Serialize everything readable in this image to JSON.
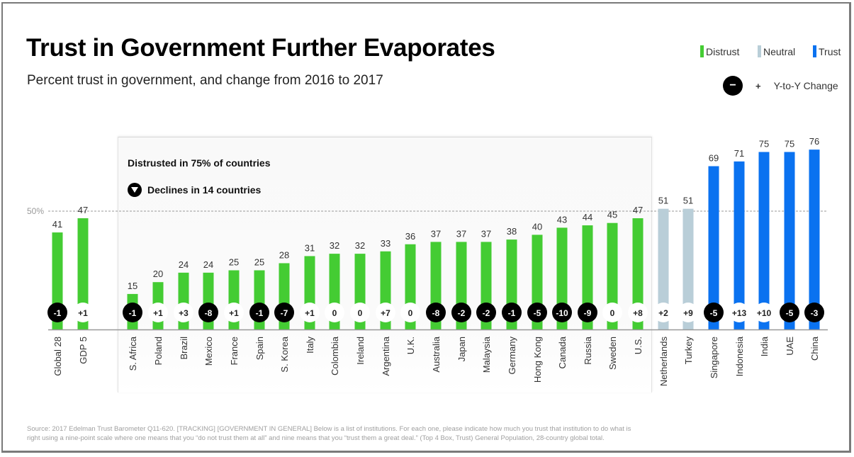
{
  "colors": {
    "distrust": "#44cc33",
    "neutral": "#b9ced8",
    "trust": "#0a72f0",
    "negative_badge": "#000000",
    "positive_badge": "#ffffff"
  },
  "header": {
    "title": "Trust in Government Further Evaporates",
    "subtitle": "Percent trust in government, and change from 2016 to 2017"
  },
  "legend": {
    "items": [
      {
        "label": "Distrust",
        "category": "distrust"
      },
      {
        "label": "Neutral",
        "category": "neutral"
      },
      {
        "label": "Trust",
        "category": "trust"
      }
    ],
    "change_minus": "−",
    "change_plus": "+",
    "change_label": "Y-to-Y Change"
  },
  "panel": {
    "line1": "Distrusted in 75% of countries",
    "line2": "Declines in 14 countries"
  },
  "source": "Source: 2017 Edelman Trust Barometer  Q11-620. [TRACKING] [GOVERNMENT IN GENERAL] Below is a list of institutions. For each one, please indicate how much you trust that institution to do what is right using a nine-point scale where one means that you “do not trust them at all” and nine means that you “trust them a great deal.” (Top 4 Box, Trust) General Population, 28-country global total.",
  "chart_data": {
    "type": "bar",
    "title": "Trust in Government Further Evaporates",
    "subtitle": "Percent trust in government, and change from 2016 to 2017",
    "xlabel": "",
    "ylabel": "",
    "ylim": [
      0,
      80
    ],
    "reference_line": {
      "value": 50,
      "label": "50%",
      "style": "dashed"
    },
    "grid": false,
    "legend_position": "top-right",
    "categories": [
      "Global 28",
      "GDP 5",
      "S. Africa",
      "Poland",
      "Brazil",
      "Mexico",
      "France",
      "Spain",
      "S. Korea",
      "Italy",
      "Colombia",
      "Ireland",
      "Argentina",
      "U.K.",
      "Australia",
      "Japan",
      "Malaysia",
      "Germany",
      "Hong Kong",
      "Canada",
      "Russia",
      "Sweden",
      "U.S.",
      "Netherlands",
      "Turkey",
      "Singapore",
      "Indonesia",
      "India",
      "UAE",
      "China"
    ],
    "values": [
      41,
      47,
      15,
      20,
      24,
      24,
      25,
      25,
      28,
      31,
      32,
      32,
      33,
      36,
      37,
      37,
      37,
      38,
      40,
      43,
      44,
      45,
      47,
      51,
      51,
      69,
      71,
      75,
      75,
      76
    ],
    "changes": [
      "-1",
      "+1",
      "-1",
      "+1",
      "+3",
      "-8",
      "+1",
      "-1",
      "-7",
      "+1",
      "0",
      "0",
      "+7",
      "0",
      "-8",
      "-2",
      "-2",
      "-1",
      "-5",
      "-10",
      "-9",
      "0",
      "+8",
      "+2",
      "+9",
      "-5",
      "+13",
      "+10",
      "-5",
      "-3"
    ],
    "category_group": [
      "distrust",
      "distrust",
      "distrust",
      "distrust",
      "distrust",
      "distrust",
      "distrust",
      "distrust",
      "distrust",
      "distrust",
      "distrust",
      "distrust",
      "distrust",
      "distrust",
      "distrust",
      "distrust",
      "distrust",
      "distrust",
      "distrust",
      "distrust",
      "distrust",
      "distrust",
      "distrust",
      "neutral",
      "neutral",
      "trust",
      "trust",
      "trust",
      "trust",
      "trust"
    ],
    "series": [
      {
        "name": "Percent trust in government 2017",
        "values": [
          41,
          47,
          15,
          20,
          24,
          24,
          25,
          25,
          28,
          31,
          32,
          32,
          33,
          36,
          37,
          37,
          37,
          38,
          40,
          43,
          44,
          45,
          47,
          51,
          51,
          69,
          71,
          75,
          75,
          76
        ]
      }
    ]
  }
}
